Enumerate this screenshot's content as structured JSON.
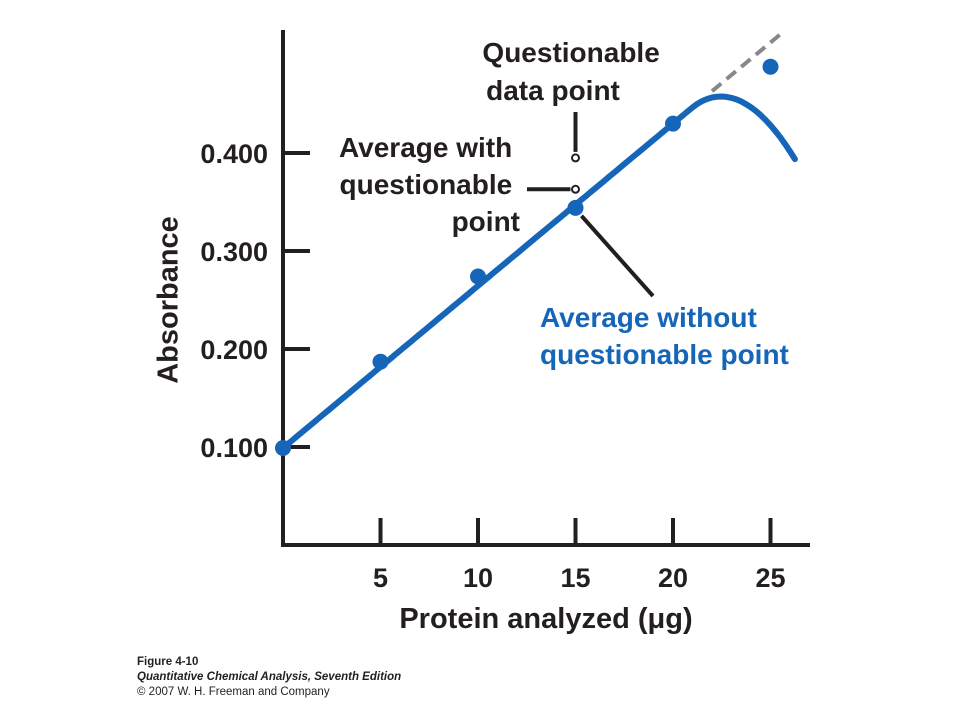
{
  "chart_data": {
    "type": "line",
    "xlabel": "Protein analyzed (μg)",
    "ylabel": "Absorbance",
    "x_ticks": [
      "5",
      "10",
      "15",
      "20",
      "25"
    ],
    "y_ticks": [
      "0.100",
      "0.200",
      "0.300",
      "0.400"
    ],
    "xlim": [
      0,
      27
    ],
    "ylim": [
      0.0,
      0.5
    ],
    "grid": false,
    "series": [
      {
        "name": "",
        "x": [
          0,
          5,
          10,
          15,
          20,
          25
        ],
        "y": [
          0.099,
          0.187,
          0.274,
          0.344,
          0.43,
          0.488
        ]
      }
    ],
    "questionable_point": {
      "x": 15,
      "y": 0.395
    },
    "average_with_questionable": {
      "x": 15,
      "y": 0.363
    },
    "annotations": {
      "questionable": [
        "Questionable",
        "data point"
      ],
      "average_with": [
        "Average with",
        "questionable",
        "point"
      ],
      "average_without": [
        "Average without",
        "questionable point"
      ]
    },
    "colors": {
      "line": "#1565b8",
      "axis": "#231f20",
      "extrapolation": "#888888"
    }
  },
  "caption": {
    "figure": "Figure 4-10",
    "book": "Quantitative Chemical Analysis, Seventh Edition",
    "copyright": "© 2007 W. H. Freeman and Company"
  }
}
